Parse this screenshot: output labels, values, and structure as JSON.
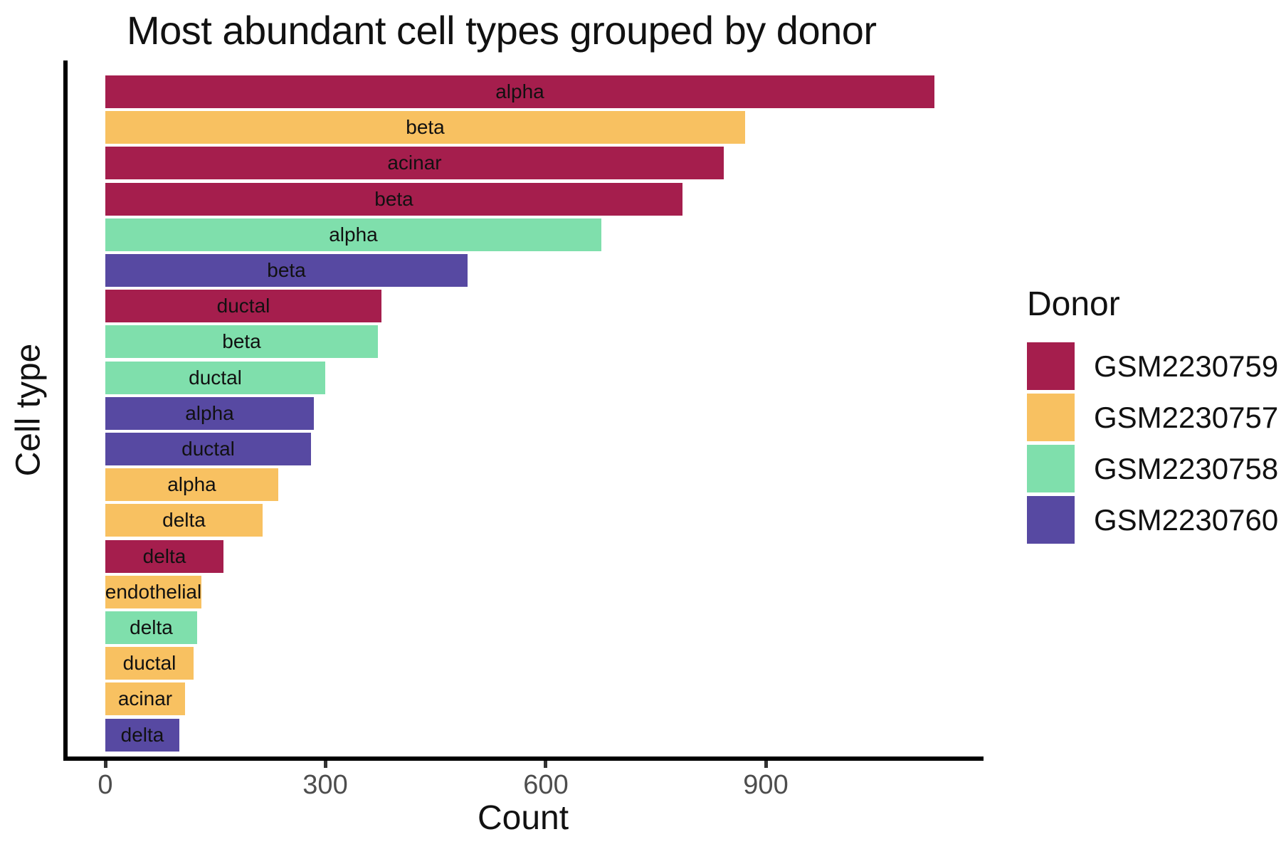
{
  "title": "Most abundant cell types grouped by donor",
  "axes": {
    "x_label": "Count",
    "y_label": "Cell type"
  },
  "legend": {
    "title": "Donor",
    "items": [
      {
        "label": "GSM2230759",
        "color": "#A51E4D"
      },
      {
        "label": "GSM2230757",
        "color": "#F8C161"
      },
      {
        "label": "GSM2230758",
        "color": "#7FDFAC"
      },
      {
        "label": "GSM2230760",
        "color": "#5749A2"
      }
    ]
  },
  "chart_data": {
    "type": "bar",
    "orientation": "horizontal",
    "title": "Most abundant cell types grouped by donor",
    "xlabel": "Count",
    "ylabel": "Cell type",
    "xlim": [
      0,
      1200
    ],
    "x_ticks": [
      0,
      300,
      600,
      900
    ],
    "grid": false,
    "legend_position": "right",
    "legend_title": "Donor",
    "colors": {
      "GSM2230759": "#A51E4D",
      "GSM2230757": "#F8C161",
      "GSM2230758": "#7FDFAC",
      "GSM2230760": "#5749A2"
    },
    "bars": [
      {
        "cell_type": "alpha",
        "donor": "GSM2230759",
        "count": 1130
      },
      {
        "cell_type": "beta",
        "donor": "GSM2230757",
        "count": 872
      },
      {
        "cell_type": "acinar",
        "donor": "GSM2230759",
        "count": 843
      },
      {
        "cell_type": "beta",
        "donor": "GSM2230759",
        "count": 787
      },
      {
        "cell_type": "alpha",
        "donor": "GSM2230758",
        "count": 676
      },
      {
        "cell_type": "beta",
        "donor": "GSM2230760",
        "count": 494
      },
      {
        "cell_type": "ductal",
        "donor": "GSM2230759",
        "count": 376
      },
      {
        "cell_type": "beta",
        "donor": "GSM2230758",
        "count": 371
      },
      {
        "cell_type": "ductal",
        "donor": "GSM2230758",
        "count": 300
      },
      {
        "cell_type": "alpha",
        "donor": "GSM2230760",
        "count": 284
      },
      {
        "cell_type": "ductal",
        "donor": "GSM2230760",
        "count": 280
      },
      {
        "cell_type": "alpha",
        "donor": "GSM2230757",
        "count": 236
      },
      {
        "cell_type": "delta",
        "donor": "GSM2230757",
        "count": 214
      },
      {
        "cell_type": "delta",
        "donor": "GSM2230759",
        "count": 161
      },
      {
        "cell_type": "endothelial",
        "donor": "GSM2230757",
        "count": 131
      },
      {
        "cell_type": "delta",
        "donor": "GSM2230758",
        "count": 125
      },
      {
        "cell_type": "ductal",
        "donor": "GSM2230757",
        "count": 120
      },
      {
        "cell_type": "acinar",
        "donor": "GSM2230757",
        "count": 109
      },
      {
        "cell_type": "delta",
        "donor": "GSM2230760",
        "count": 101
      }
    ]
  }
}
